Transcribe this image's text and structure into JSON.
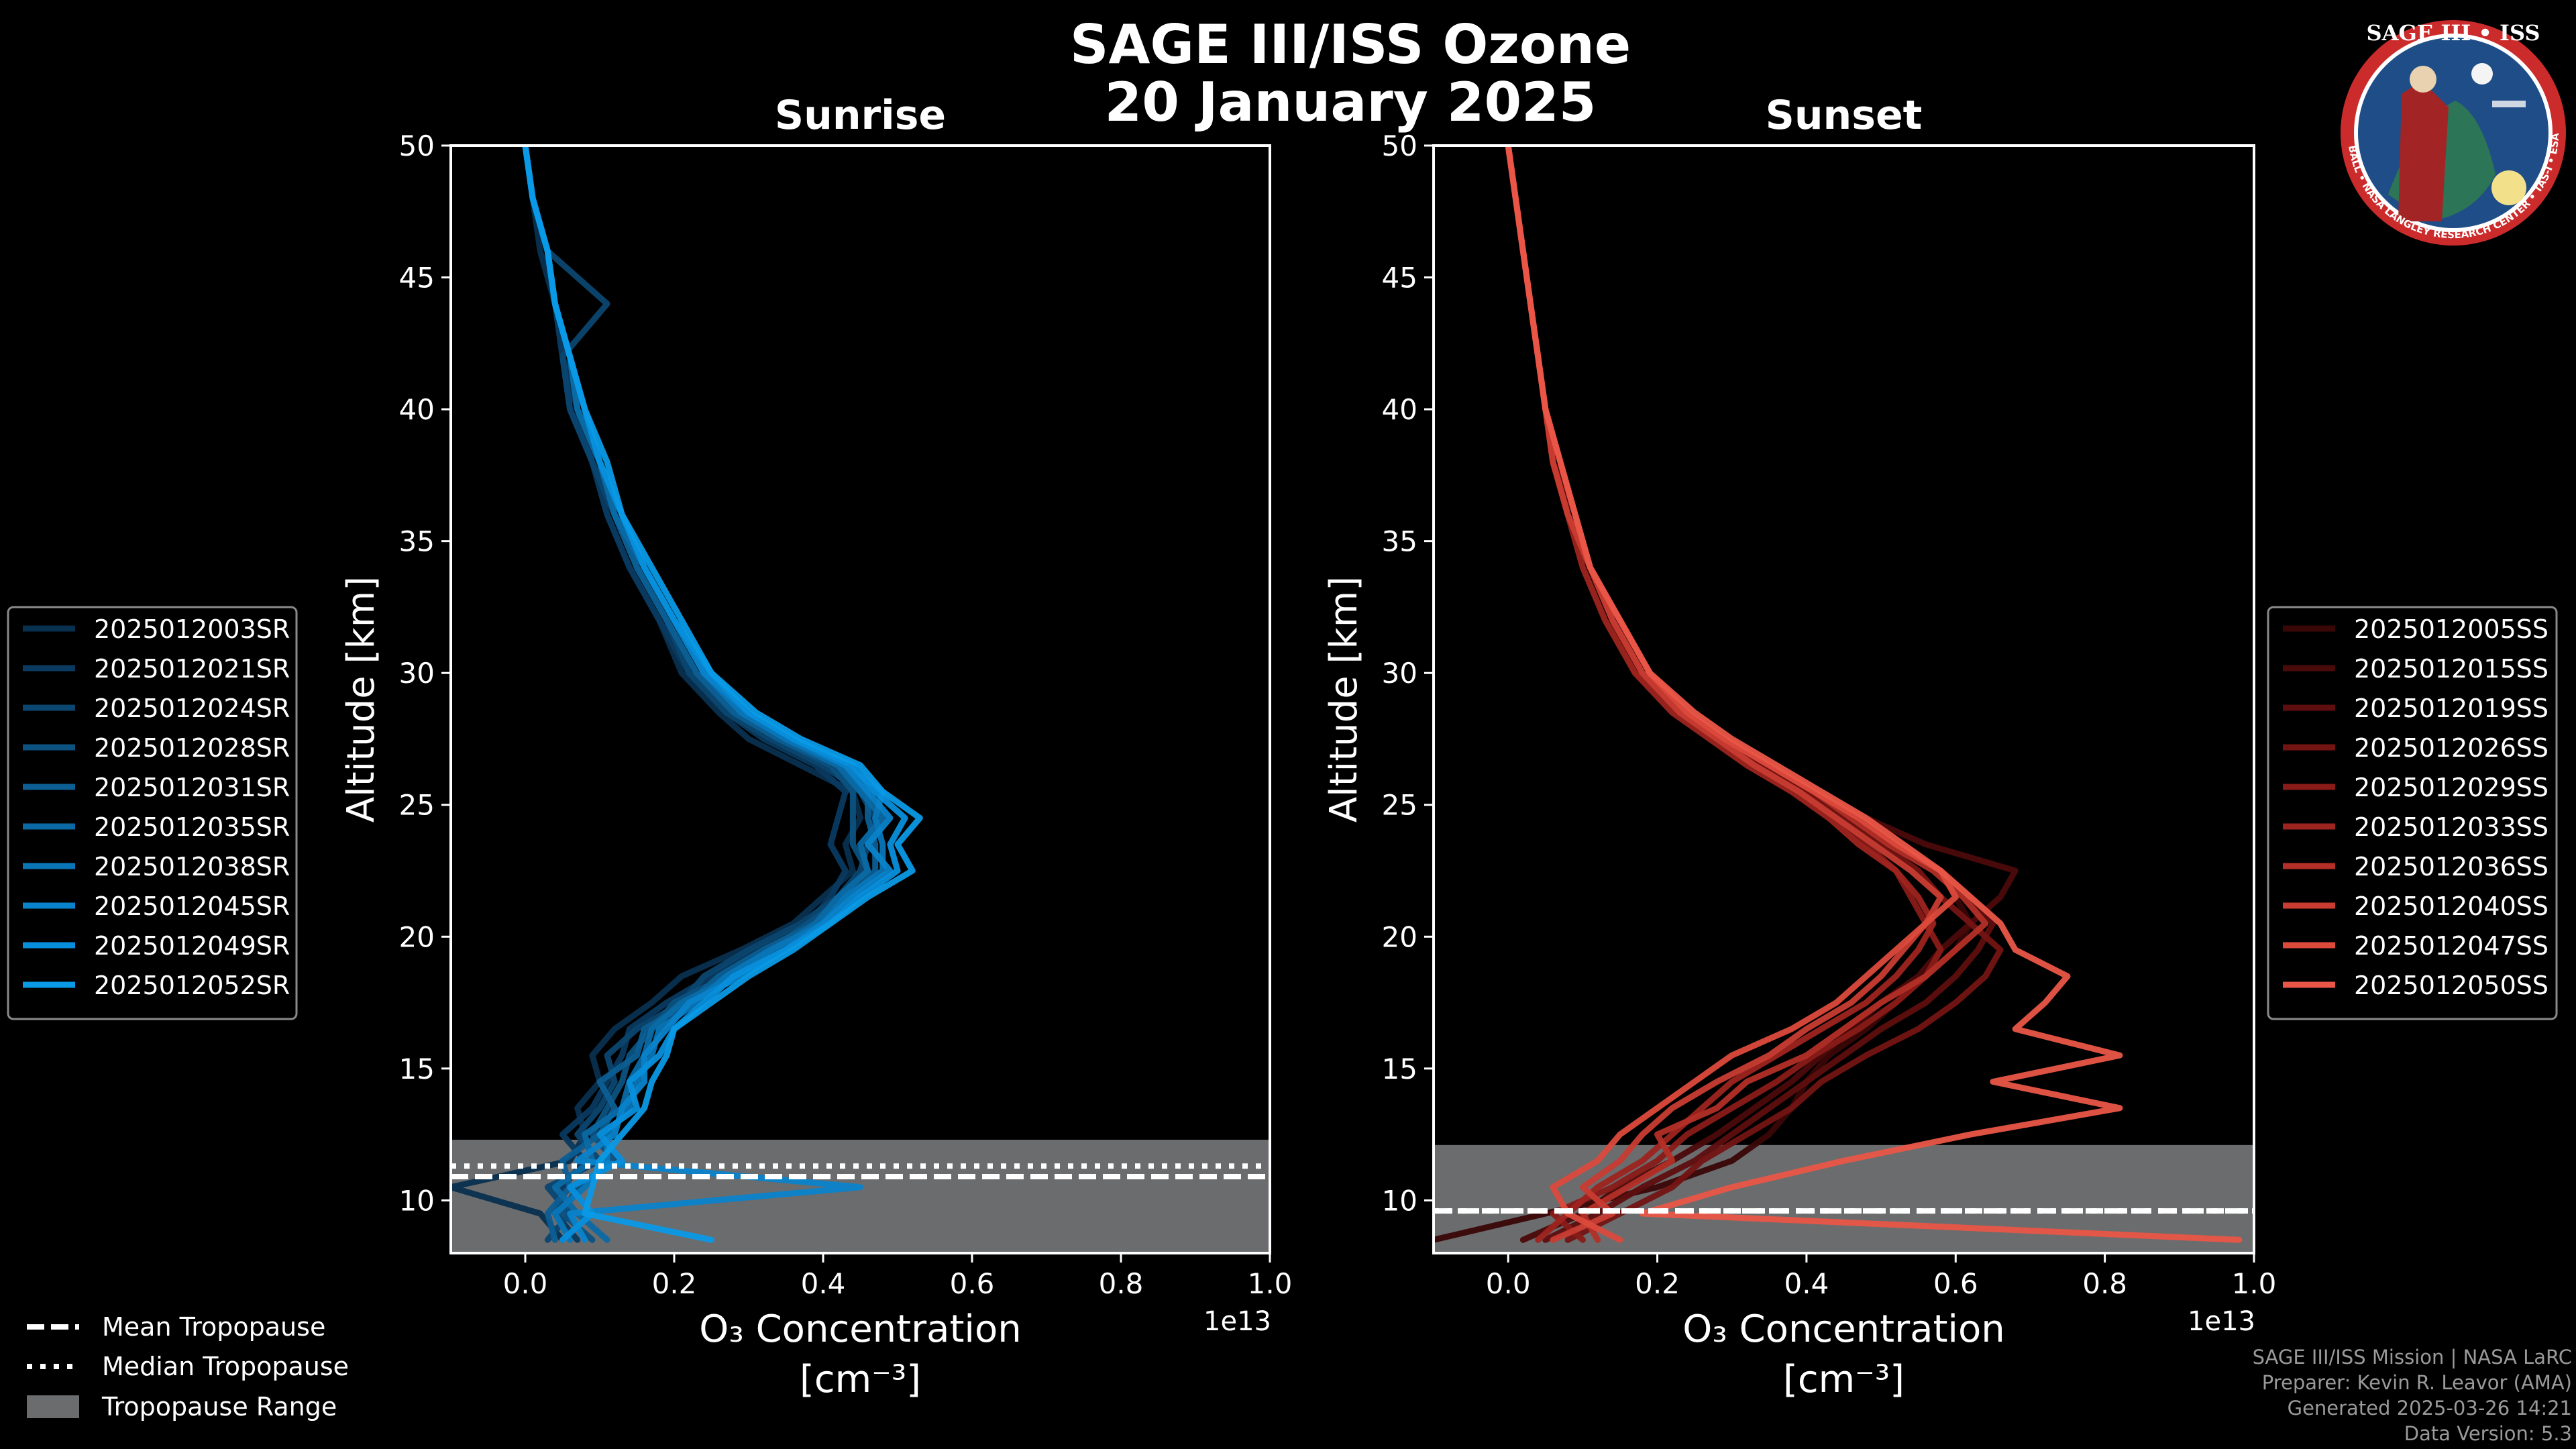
{
  "main_title": "SAGE III/ISS Ozone",
  "date": "20 January 2025",
  "logo": {
    "title": "SAGE III • ISS",
    "ring_text": "BALL • NASA LANGLEY RESEARCH CENTER • TAS-I • ESA",
    "colors": {
      "ring": "#cc2b2b",
      "face": "#1f4d87"
    }
  },
  "colors": {
    "background": "#000000",
    "tropopause_band": "#6b6c6e",
    "sunrise": [
      "#08304f",
      "#0a3a60",
      "#0b4670",
      "#0c5281",
      "#0c5e93",
      "#0b6aa5",
      "#0a76b8",
      "#0983cb",
      "#088fdc",
      "#0a9ae6"
    ],
    "sunset": [
      "#3a0707",
      "#4b0a0a",
      "#5e0e0e",
      "#731413",
      "#891b18",
      "#9e241f",
      "#b32f27",
      "#c83c31",
      "#dc4a3c",
      "#ea5647"
    ]
  },
  "chart_data": [
    {
      "type": "line",
      "title": "Sunrise",
      "xlabel": "O₃ Concentration",
      "xlabel_units": "[cm⁻³]",
      "ylabel": "Altitude [km]",
      "xlim": [
        -0.1,
        1.0
      ],
      "ylim": [
        8,
        50
      ],
      "x_scale_note": "1e13",
      "xticks": [
        "0.0",
        "0.2",
        "0.4",
        "0.6",
        "0.8",
        "1.0"
      ],
      "xtick_values": [
        0.0,
        0.2,
        0.4,
        0.6,
        0.8,
        1.0
      ],
      "yticks": [
        "10",
        "15",
        "20",
        "25",
        "30",
        "35",
        "40",
        "45",
        "50"
      ],
      "ytick_values": [
        10,
        15,
        20,
        25,
        30,
        35,
        40,
        45,
        50
      ],
      "tropopause_range": [
        8,
        12.3
      ],
      "mean_tropopause": 10.9,
      "median_tropopause": 11.3,
      "altitudes": [
        8.5,
        9.5,
        10.5,
        11.5,
        12.5,
        13.5,
        14.5,
        15.5,
        16.5,
        17.5,
        18.5,
        19.5,
        20.5,
        21.5,
        22.5,
        23.5,
        24.5,
        25.5,
        26.5,
        27.5,
        28.5,
        30,
        32,
        34,
        36,
        38,
        40,
        42,
        44,
        46,
        48,
        50
      ],
      "series": [
        {
          "name": "2025012003SR",
          "values": [
            0.05,
            0.02,
            -0.1,
            0.06,
            0.08,
            0.07,
            0.1,
            0.09,
            0.12,
            0.17,
            0.21,
            0.29,
            0.36,
            0.4,
            0.44,
            0.43,
            0.45,
            0.44,
            0.37,
            0.3,
            0.26,
            0.21,
            0.18,
            0.14,
            0.11,
            0.09,
            0.06,
            0.05,
            0.04,
            0.02,
            0.01,
            0.0
          ]
        },
        {
          "name": "2025012021SR",
          "values": [
            0.07,
            0.04,
            0.05,
            0.08,
            0.05,
            0.09,
            0.11,
            0.13,
            0.14,
            0.19,
            0.25,
            0.31,
            0.38,
            0.41,
            0.43,
            0.41,
            0.42,
            0.43,
            0.39,
            0.32,
            0.27,
            0.22,
            0.18,
            0.14,
            0.11,
            0.09,
            0.07,
            0.05,
            0.04,
            0.03,
            0.01,
            0.0
          ]
        },
        {
          "name": "2025012024SR",
          "values": [
            0.03,
            0.06,
            0.03,
            0.1,
            0.07,
            0.1,
            0.12,
            0.11,
            0.15,
            0.21,
            0.24,
            0.3,
            0.37,
            0.42,
            0.45,
            0.46,
            0.47,
            0.45,
            0.4,
            0.33,
            0.27,
            0.22,
            0.19,
            0.15,
            0.12,
            0.09,
            0.06,
            0.05,
            0.11,
            0.03,
            0.01,
            0.0
          ]
        },
        {
          "name": "2025012028SR",
          "values": [
            0.09,
            0.05,
            0.07,
            0.12,
            0.09,
            0.11,
            0.13,
            0.14,
            0.17,
            0.2,
            0.27,
            0.33,
            0.38,
            0.43,
            0.46,
            0.44,
            0.44,
            0.44,
            0.41,
            0.34,
            0.28,
            0.23,
            0.19,
            0.15,
            0.12,
            0.1,
            0.07,
            0.06,
            0.04,
            0.03,
            0.01,
            0.0
          ]
        },
        {
          "name": "2025012031SR",
          "values": [
            0.04,
            0.03,
            0.06,
            0.05,
            0.1,
            0.12,
            0.1,
            0.15,
            0.16,
            0.22,
            0.26,
            0.32,
            0.39,
            0.44,
            0.47,
            0.47,
            0.46,
            0.46,
            0.42,
            0.34,
            0.28,
            0.23,
            0.19,
            0.15,
            0.12,
            0.1,
            0.07,
            0.06,
            0.04,
            0.03,
            0.01,
            0.0
          ]
        },
        {
          "name": "2025012035SR",
          "values": [
            0.11,
            0.07,
            0.04,
            0.09,
            0.08,
            0.13,
            0.14,
            0.16,
            0.17,
            0.21,
            0.28,
            0.34,
            0.39,
            0.42,
            0.46,
            0.45,
            0.48,
            0.45,
            0.42,
            0.35,
            0.29,
            0.24,
            0.2,
            0.16,
            0.12,
            0.1,
            0.07,
            0.06,
            0.04,
            0.03,
            0.01,
            0.0
          ]
        },
        {
          "name": "2025012038SR",
          "values": [
            0.06,
            0.04,
            0.08,
            0.11,
            0.11,
            0.14,
            0.15,
            0.17,
            0.18,
            0.23,
            0.27,
            0.33,
            0.4,
            0.43,
            0.48,
            0.48,
            0.47,
            0.48,
            0.43,
            0.35,
            0.29,
            0.24,
            0.2,
            0.16,
            0.13,
            0.1,
            0.08,
            0.06,
            0.04,
            0.03,
            0.01,
            0.0
          ]
        },
        {
          "name": "2025012045SR",
          "values": [
            0.08,
            0.06,
            0.45,
            0.07,
            0.12,
            0.13,
            0.16,
            0.16,
            0.19,
            0.22,
            0.29,
            0.35,
            0.4,
            0.44,
            0.49,
            0.46,
            0.49,
            0.46,
            0.43,
            0.36,
            0.3,
            0.24,
            0.2,
            0.16,
            0.13,
            0.1,
            0.08,
            0.06,
            0.04,
            0.03,
            0.01,
            0.0
          ]
        },
        {
          "name": "2025012049SR",
          "values": [
            0.05,
            0.09,
            0.06,
            0.13,
            0.1,
            0.15,
            0.14,
            0.18,
            0.2,
            0.24,
            0.28,
            0.35,
            0.41,
            0.45,
            0.5,
            0.49,
            0.51,
            0.47,
            0.44,
            0.36,
            0.3,
            0.25,
            0.2,
            0.16,
            0.13,
            0.1,
            0.08,
            0.06,
            0.04,
            0.03,
            0.01,
            0.0
          ]
        },
        {
          "name": "2025012052SR",
          "values": [
            0.25,
            0.08,
            0.09,
            0.1,
            0.13,
            0.16,
            0.17,
            0.19,
            0.2,
            0.25,
            0.3,
            0.36,
            0.41,
            0.46,
            0.52,
            0.5,
            0.53,
            0.48,
            0.45,
            0.37,
            0.31,
            0.25,
            0.21,
            0.17,
            0.13,
            0.11,
            0.08,
            0.06,
            0.04,
            0.03,
            0.01,
            0.0
          ]
        }
      ]
    },
    {
      "type": "line",
      "title": "Sunset",
      "xlabel": "O₃ Concentration",
      "xlabel_units": "[cm⁻³]",
      "ylabel": "Altitude [km]",
      "xlim": [
        -0.1,
        1.0
      ],
      "ylim": [
        8,
        50
      ],
      "x_scale_note": "1e13",
      "xticks": [
        "0.0",
        "0.2",
        "0.4",
        "0.6",
        "0.8",
        "1.0"
      ],
      "xtick_values": [
        0.0,
        0.2,
        0.4,
        0.6,
        0.8,
        1.0
      ],
      "yticks": [
        "10",
        "15",
        "20",
        "25",
        "30",
        "35",
        "40",
        "45",
        "50"
      ],
      "ytick_values": [
        10,
        15,
        20,
        25,
        30,
        35,
        40,
        45,
        50
      ],
      "tropopause_range": [
        8,
        12.1
      ],
      "mean_tropopause": 9.6,
      "median_tropopause": 9.6,
      "altitudes": [
        8.5,
        9.5,
        10.5,
        11.5,
        12.5,
        13.5,
        14.5,
        15.5,
        16.5,
        17.5,
        18.5,
        19.5,
        20.5,
        21.5,
        22.5,
        23.5,
        24.5,
        25.5,
        26.5,
        27.5,
        28.5,
        30,
        32,
        34,
        36,
        38,
        40,
        42,
        44,
        46,
        48,
        50
      ],
      "series": [
        {
          "name": "2025012005SS",
          "values": [
            -0.1,
            0.05,
            0.2,
            0.3,
            0.35,
            0.38,
            0.4,
            0.43,
            0.48,
            0.52,
            0.56,
            0.6,
            0.62,
            0.6,
            0.58,
            0.52,
            0.46,
            0.4,
            0.34,
            0.28,
            0.24,
            0.17,
            0.14,
            0.11,
            0.08,
            0.06,
            0.05,
            0.04,
            0.03,
            0.02,
            0.01,
            0.0
          ]
        },
        {
          "name": "2025012015SS",
          "values": [
            0.02,
            0.1,
            0.15,
            0.22,
            0.28,
            0.33,
            0.38,
            0.42,
            0.46,
            0.5,
            0.55,
            0.58,
            0.62,
            0.66,
            0.68,
            0.56,
            0.48,
            0.4,
            0.34,
            0.28,
            0.24,
            0.18,
            0.14,
            0.11,
            0.08,
            0.06,
            0.05,
            0.04,
            0.03,
            0.02,
            0.01,
            0.0
          ]
        },
        {
          "name": "2025012019SS",
          "values": [
            0.05,
            0.12,
            0.18,
            0.25,
            0.3,
            0.35,
            0.4,
            0.45,
            0.5,
            0.56,
            0.6,
            0.63,
            0.65,
            0.62,
            0.58,
            0.52,
            0.47,
            0.41,
            0.35,
            0.29,
            0.24,
            0.18,
            0.14,
            0.11,
            0.08,
            0.07,
            0.05,
            0.04,
            0.03,
            0.02,
            0.01,
            0.0
          ]
        },
        {
          "name": "2025012026SS",
          "values": [
            0.08,
            0.15,
            0.22,
            0.26,
            0.32,
            0.38,
            0.42,
            0.48,
            0.55,
            0.6,
            0.64,
            0.66,
            0.62,
            0.58,
            0.55,
            0.5,
            0.45,
            0.4,
            0.34,
            0.28,
            0.23,
            0.18,
            0.14,
            0.11,
            0.09,
            0.07,
            0.05,
            0.04,
            0.03,
            0.02,
            0.01,
            0.0
          ]
        },
        {
          "name": "2025012029SS",
          "values": [
            0.1,
            0.06,
            0.14,
            0.2,
            0.24,
            0.3,
            0.36,
            0.41,
            0.47,
            0.52,
            0.56,
            0.58,
            0.56,
            0.54,
            0.52,
            0.48,
            0.44,
            0.39,
            0.33,
            0.28,
            0.23,
            0.18,
            0.14,
            0.11,
            0.08,
            0.06,
            0.05,
            0.04,
            0.03,
            0.02,
            0.01,
            0.0
          ]
        },
        {
          "name": "2025012033SS",
          "values": [
            0.04,
            0.08,
            0.12,
            0.18,
            0.22,
            0.26,
            0.3,
            0.36,
            0.42,
            0.48,
            0.52,
            0.55,
            0.57,
            0.55,
            0.52,
            0.47,
            0.43,
            0.38,
            0.32,
            0.27,
            0.22,
            0.17,
            0.13,
            0.1,
            0.08,
            0.06,
            0.05,
            0.04,
            0.03,
            0.02,
            0.01,
            0.0
          ]
        },
        {
          "name": "2025012036SS",
          "values": [
            0.12,
            0.1,
            0.16,
            0.22,
            0.2,
            0.28,
            0.32,
            0.4,
            0.45,
            0.5,
            0.56,
            0.6,
            0.64,
            0.61,
            0.57,
            0.51,
            0.46,
            0.41,
            0.35,
            0.29,
            0.24,
            0.19,
            0.15,
            0.11,
            0.09,
            0.07,
            0.05,
            0.04,
            0.03,
            0.02,
            0.01,
            0.0
          ]
        },
        {
          "name": "2025012040SS",
          "values": [
            0.06,
            0.14,
            0.1,
            0.15,
            0.18,
            0.22,
            0.28,
            0.35,
            0.4,
            0.46,
            0.5,
            0.53,
            0.56,
            0.58,
            0.54,
            0.49,
            0.44,
            0.39,
            0.33,
            0.28,
            0.23,
            0.18,
            0.14,
            0.11,
            0.08,
            0.06,
            0.05,
            0.04,
            0.03,
            0.02,
            0.01,
            0.0
          ]
        },
        {
          "name": "2025012047SS",
          "values": [
            0.15,
            0.08,
            0.06,
            0.12,
            0.15,
            0.2,
            0.25,
            0.3,
            0.38,
            0.44,
            0.48,
            0.52,
            0.56,
            0.6,
            0.58,
            0.52,
            0.47,
            0.41,
            0.35,
            0.29,
            0.24,
            0.19,
            0.15,
            0.11,
            0.09,
            0.07,
            0.05,
            0.04,
            0.03,
            0.02,
            0.01,
            0.0
          ]
        },
        {
          "name": "2025012050SS",
          "values": [
            0.98,
            0.18,
            0.3,
            0.45,
            0.62,
            0.82,
            0.65,
            0.82,
            0.68,
            0.72,
            0.75,
            0.68,
            0.66,
            0.62,
            0.58,
            0.53,
            0.48,
            0.42,
            0.36,
            0.3,
            0.25,
            0.19,
            0.15,
            0.11,
            0.09,
            0.07,
            0.05,
            0.04,
            0.03,
            0.02,
            0.01,
            0.0
          ]
        }
      ]
    }
  ],
  "tropopause_legend": [
    "Mean Tropopause",
    "Median Tropopause",
    "Tropopause Range"
  ],
  "footer": {
    "mission": "SAGE III/ISS Mission | NASA LaRC",
    "preparer": "Preparer: Kevin R. Leavor (AMA)",
    "generated": "Generated 2025-03-26 14:21",
    "version": "Data Version: 5.3"
  }
}
